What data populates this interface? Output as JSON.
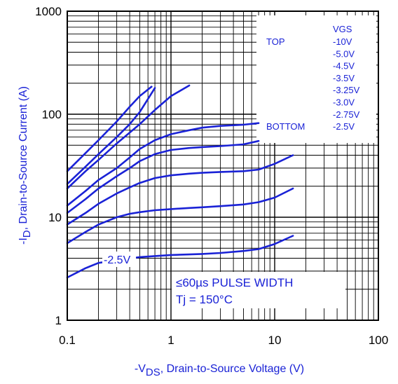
{
  "chart_data": {
    "type": "line",
    "xlabel_prefix": "-V",
    "xlabel_sub": "DS",
    "xlabel_rest": ", Drain-to-Source Voltage (V)",
    "ylabel_prefix": "-I",
    "ylabel_sub": "D",
    "ylabel_rest": ", Drain-to-Source Current (A)",
    "x_scale": "log",
    "y_scale": "log",
    "xlim": [
      0.1,
      100
    ],
    "ylim": [
      1,
      1000
    ],
    "x_ticks": [
      "0.1",
      "1",
      "10",
      "100"
    ],
    "y_ticks": [
      "1",
      "10",
      "100",
      "1000"
    ],
    "grid": true,
    "line_color": "#1a22d6",
    "legend": {
      "placement": "top-right",
      "header": "VGS",
      "top_label": "TOP",
      "bottom_label": "BOTTOM",
      "entries": [
        "-10V",
        "-5.0V",
        "-4.5V",
        "-3.5V",
        "-3.25V",
        "-3.0V",
        "-2.75V",
        "-2.5V"
      ]
    },
    "annotations": {
      "curve_label": "-2.5V",
      "pulse": "≤60µs PULSE WIDTH",
      "tj": "Tj = 150°C"
    },
    "series": [
      {
        "name": "-10V",
        "x": [
          0.1,
          0.15,
          0.2,
          0.3,
          0.4,
          0.5,
          0.65
        ],
        "y": [
          28,
          42,
          56,
          85,
          118,
          150,
          185
        ]
      },
      {
        "name": "-5.0V",
        "x": [
          0.1,
          0.15,
          0.2,
          0.3,
          0.4,
          0.5,
          0.7
        ],
        "y": [
          21,
          31,
          41,
          60,
          80,
          105,
          180
        ]
      },
      {
        "name": "-4.5V",
        "x": [
          0.1,
          0.15,
          0.2,
          0.3,
          0.5,
          0.7,
          1.0,
          1.5
        ],
        "y": [
          19,
          28,
          36,
          52,
          80,
          110,
          150,
          190
        ]
      },
      {
        "name": "-3.5V",
        "x": [
          0.1,
          0.15,
          0.2,
          0.3,
          0.4,
          0.5,
          0.7,
          1.0,
          1.5,
          2,
          3,
          5,
          7
        ],
        "y": [
          13,
          18,
          23,
          30,
          38,
          46,
          56,
          64,
          70,
          74,
          77,
          79,
          82
        ]
      },
      {
        "name": "-3.25V",
        "x": [
          0.1,
          0.15,
          0.2,
          0.3,
          0.4,
          0.5,
          0.7,
          1.0,
          1.5,
          2,
          3,
          5,
          7
        ],
        "y": [
          11,
          15,
          19,
          25,
          30,
          35,
          41,
          45,
          47,
          48,
          49,
          51,
          55
        ]
      },
      {
        "name": "-3.0V",
        "x": [
          0.1,
          0.15,
          0.2,
          0.3,
          0.4,
          0.5,
          0.7,
          1.0,
          1.5,
          2,
          3,
          5,
          7,
          10,
          15
        ],
        "y": [
          8.5,
          11,
          13.5,
          17,
          19.5,
          21.5,
          24,
          25.5,
          26.5,
          27,
          27.5,
          28,
          29,
          33,
          40
        ]
      },
      {
        "name": "-2.75V",
        "x": [
          0.1,
          0.15,
          0.2,
          0.3,
          0.4,
          0.5,
          0.7,
          1.0,
          1.5,
          2,
          3,
          5,
          7,
          10,
          15
        ],
        "y": [
          5.6,
          7.2,
          8.5,
          10,
          10.8,
          11.2,
          11.7,
          12,
          12.3,
          12.5,
          12.8,
          13.3,
          14,
          15.5,
          19
        ]
      },
      {
        "name": "-2.5V",
        "x": [
          0.1,
          0.15,
          0.2,
          0.5,
          0.7,
          1.0,
          1.5,
          2,
          3,
          5,
          7,
          10,
          15
        ],
        "y": [
          2.6,
          3.2,
          3.6,
          4.1,
          4.2,
          4.3,
          4.35,
          4.4,
          4.5,
          4.7,
          4.9,
          5.5,
          6.6
        ]
      }
    ]
  }
}
